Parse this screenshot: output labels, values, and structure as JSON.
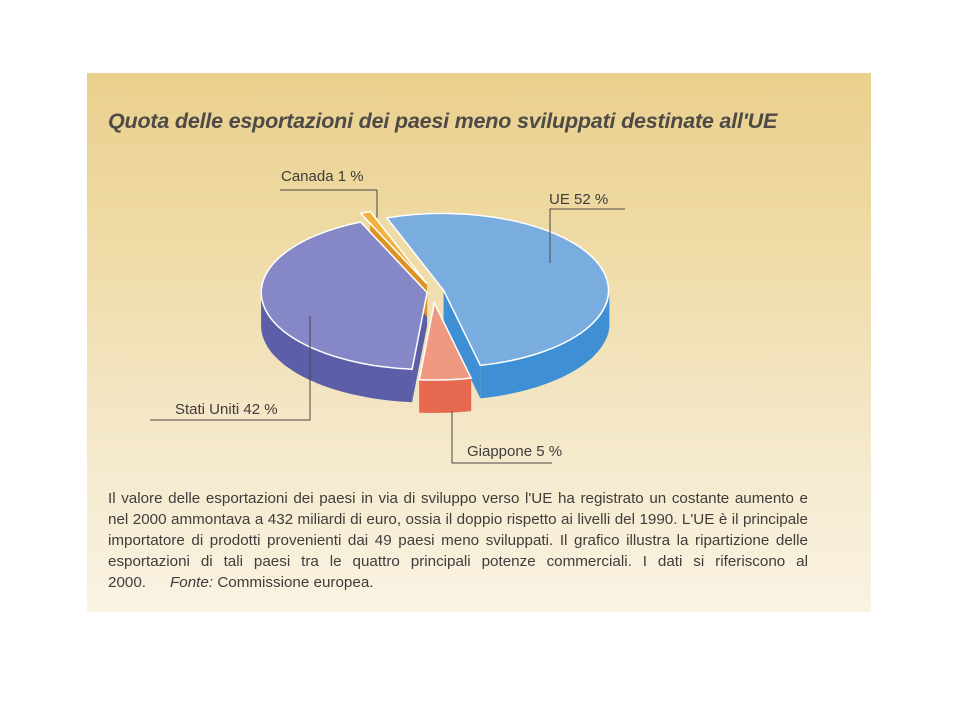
{
  "chart_data": {
    "type": "pie",
    "title": "Quota delle esportazioni dei paesi meno sviluppati destinate all'UE",
    "slices": [
      {
        "label": "UE 52 %",
        "name": "UE",
        "value": 52,
        "color": "#7aaddf",
        "side": "#3e8fd4"
      },
      {
        "label": "Giappone 5 %",
        "name": "Giappone",
        "value": 5,
        "color": "#ef9a80",
        "side": "#e7694f"
      },
      {
        "label": "Stati Uniti 42 %",
        "name": "Stati Uniti",
        "value": 42,
        "color": "#8587c6",
        "side": "#5c5ea8"
      },
      {
        "label": "Canada 1 %",
        "name": "Canada",
        "value": 1,
        "color": "#f0b23a",
        "side": "#dd9322"
      }
    ]
  },
  "caption": {
    "text": "Il valore delle esportazioni dei paesi in via di sviluppo verso l'UE ha registrato un costante aumento e nel 2000 ammontava a 432 miliardi di euro, ossia il doppio rispetto ai livelli del 1990. L'UE è il principale importatore di prodotti provenienti dai 49 paesi meno sviluppati. Il grafico illustra la ripartizione delle esportazioni di tali paesi tra le quattro principali potenze commerciali. I dati si riferiscono al 2000.",
    "source_label": "Fonte:",
    "source_text": "Commissione europea."
  }
}
